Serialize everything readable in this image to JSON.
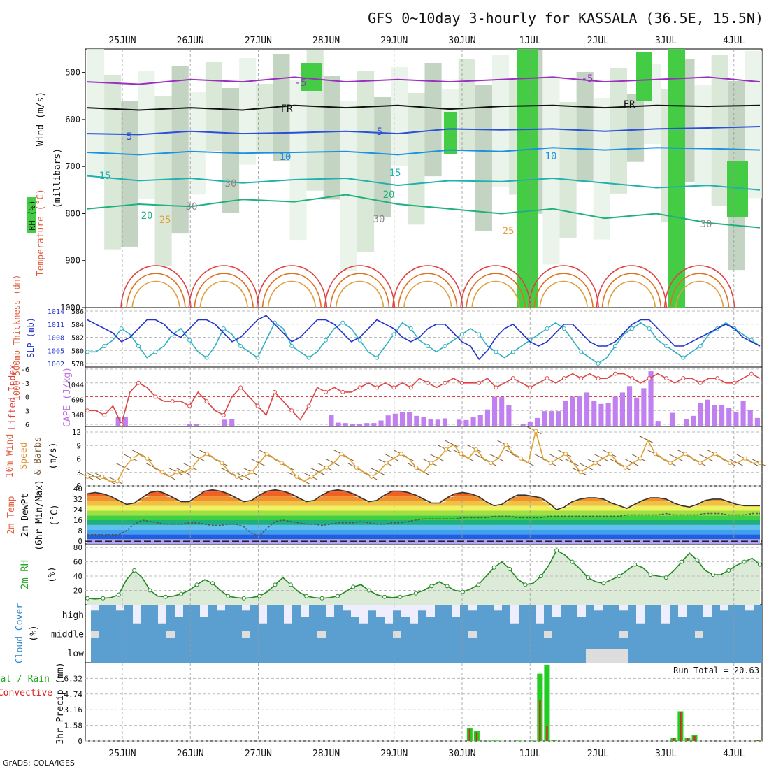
{
  "title": "GFS 0~10day 3-hourly for KASSALA (36.5E, 15.5N)",
  "credit": "GrADS: COLA/IGES",
  "dates": [
    "25JUN",
    "26JUN",
    "27JUN",
    "28JUN",
    "29JUN",
    "30JUN",
    "1JUL",
    "2JUL",
    "3JUL",
    "4JUL"
  ],
  "colors": {
    "grid": "#9a9a9a",
    "wind_blue": "#5a9fd0",
    "rain": "#22cc22",
    "conv": "#dd2222",
    "cape": "#c080f0",
    "rh_green": "#22cc22"
  },
  "chart_data": [
    {
      "type": "heatmap",
      "name": "pressure-time cross section",
      "ylabels": [
        "500",
        "600",
        "700",
        "800",
        "900",
        "1000"
      ],
      "ylabel_wind": "Wind (m/s)",
      "ylabel_temp": "Temperature (°C)",
      "ylabel_rh": "RH (%)",
      "ylabel_units": "(millibars)",
      "isotherm_labels": [
        "-5",
        "-5",
        "FR",
        "FR",
        "5",
        "5",
        "10",
        "10",
        "15",
        "15",
        "20",
        "20",
        "25",
        "25",
        "30",
        "30",
        "30",
        "30"
      ],
      "ylim": [
        450,
        1000
      ],
      "isotherms": [
        {
          "label": "-5",
          "p": [
            520,
            525,
            515,
            520,
            510,
            520,
            515,
            520,
            515,
            510,
            520,
            515,
            510,
            520
          ],
          "color": "#9a2fc0"
        },
        {
          "label": "FR",
          "p": [
            575,
            580,
            575,
            580,
            570,
            575,
            570,
            578,
            572,
            570,
            575,
            570,
            572,
            570
          ],
          "color": "#111111"
        },
        {
          "label": "5",
          "p": [
            630,
            632,
            625,
            630,
            628,
            625,
            630,
            620,
            622,
            620,
            625,
            620,
            618,
            615
          ],
          "color": "#2a4fd8"
        },
        {
          "label": "10",
          "p": [
            670,
            675,
            668,
            672,
            670,
            668,
            675,
            665,
            668,
            660,
            665,
            660,
            662,
            665
          ],
          "color": "#1e90e0"
        },
        {
          "label": "15",
          "p": [
            720,
            730,
            725,
            735,
            728,
            725,
            740,
            730,
            732,
            725,
            735,
            745,
            740,
            750
          ],
          "color": "#20b0b0"
        },
        {
          "label": "20",
          "p": [
            790,
            780,
            785,
            770,
            775,
            760,
            780,
            790,
            800,
            790,
            810,
            800,
            820,
            830
          ],
          "color": "#20b080"
        }
      ]
    },
    {
      "type": "line",
      "name": "thickness and slp",
      "ylabel_left": "1000-500mb Thickness (dm)",
      "ylabel_right": "SLP (mb)",
      "yticks_left": [
        "586",
        "584",
        "582",
        "580",
        "578"
      ],
      "yticks_right": [
        "1014",
        "1011",
        "1008",
        "1005",
        "1002"
      ],
      "thickness": [
        579,
        579,
        580,
        581,
        583,
        582,
        580,
        578,
        579,
        580,
        582,
        583,
        581,
        579,
        578,
        580,
        583,
        582,
        580,
        579,
        578,
        581,
        584,
        583,
        580,
        579,
        578,
        579,
        581,
        583,
        584,
        583,
        581,
        579,
        578,
        580,
        582,
        584,
        583,
        581,
        580,
        579,
        580,
        581,
        582,
        583,
        582,
        580,
        579,
        578,
        579,
        580,
        581,
        582,
        583,
        584,
        583,
        581,
        579,
        578,
        577,
        578,
        580,
        582,
        583,
        584,
        583,
        581,
        580,
        579,
        578,
        579,
        580,
        582,
        583,
        584,
        583,
        582,
        581,
        580
      ],
      "slp": [
        1012,
        1011,
        1010,
        1009,
        1007,
        1008,
        1010,
        1012,
        1012,
        1011,
        1009,
        1008,
        1010,
        1012,
        1012,
        1011,
        1009,
        1007,
        1008,
        1010,
        1012,
        1013,
        1011,
        1009,
        1007,
        1008,
        1010,
        1012,
        1012,
        1011,
        1009,
        1007,
        1008,
        1010,
        1012,
        1011,
        1010,
        1008,
        1007,
        1008,
        1010,
        1011,
        1011,
        1009,
        1007,
        1006,
        1003,
        1005,
        1008,
        1010,
        1011,
        1009,
        1007,
        1006,
        1007,
        1009,
        1011,
        1011,
        1009,
        1007,
        1006,
        1006,
        1007,
        1009,
        1011,
        1012,
        1012,
        1010,
        1008,
        1006,
        1006,
        1007,
        1008,
        1009,
        1010,
        1011,
        1010,
        1008,
        1007,
        1006
      ]
    },
    {
      "type": "bar",
      "name": "lifted index and cape",
      "ylabel_left": "Lifted Index",
      "ylabel_right": "CAPE (J/kg)",
      "yticks_left": [
        "-6",
        "-3",
        "0",
        "3",
        "6"
      ],
      "yticks_right": [
        "1044",
        "696",
        "348"
      ],
      "lifted_index": [
        3,
        3,
        4,
        2,
        6,
        -1,
        -3,
        -2,
        0,
        1,
        1,
        1,
        2,
        -1,
        1,
        3,
        4,
        0,
        -2,
        0,
        2,
        4,
        -1,
        1,
        3,
        5,
        2,
        -2,
        -1,
        -2,
        -1,
        -1,
        -2,
        -3,
        -2,
        -3,
        -2,
        -3,
        -2,
        -4,
        -3,
        -2,
        -3,
        -4,
        -3,
        -3,
        -3,
        -4,
        -2,
        -3,
        -4,
        -3,
        -2,
        -3,
        -4,
        -3,
        -4,
        -5,
        -4,
        -5,
        -4,
        -4,
        -5,
        -5,
        -4,
        -3,
        -4,
        -5,
        -4,
        -3,
        -4,
        -4,
        -3,
        -4,
        -4,
        -3,
        -3,
        -4,
        -5,
        -4
      ],
      "cape": [
        0,
        0,
        0,
        0,
        220,
        230,
        0,
        0,
        0,
        0,
        0,
        0,
        0,
        0,
        60,
        60,
        0,
        0,
        0,
        160,
        170,
        0,
        0,
        0,
        0,
        0,
        0,
        0,
        0,
        0,
        0,
        0,
        0,
        0,
        270,
        90,
        80,
        60,
        60,
        80,
        80,
        140,
        260,
        300,
        330,
        330,
        250,
        230,
        180,
        160,
        190,
        0,
        160,
        150,
        230,
        270,
        400,
        700,
        690,
        500,
        0,
        60,
        100,
        200,
        360,
        360,
        360,
        600,
        700,
        720,
        800,
        600,
        530,
        560,
        700,
        800,
        950,
        680,
        900,
        1300,
        130,
        0,
        320,
        0,
        180,
        250,
        550,
        630,
        500,
        500,
        430,
        330,
        600,
        380,
        200
      ]
    },
    {
      "type": "line",
      "name": "10m wind",
      "ylabel": "10m Wind Speed & Barbs (m/s)",
      "yticks": [
        "12",
        "9",
        "6",
        "3",
        "0"
      ],
      "ylim": [
        0,
        13
      ],
      "values": [
        2,
        2,
        2,
        1,
        1,
        4,
        6,
        7,
        6,
        4,
        3,
        2,
        3,
        3,
        4,
        6,
        7,
        6,
        5,
        3,
        2,
        2,
        3,
        5,
        7,
        6,
        5,
        4,
        2,
        1,
        2,
        3,
        4,
        5,
        7,
        6,
        4,
        3,
        2,
        3,
        5,
        6,
        7,
        6,
        4,
        3,
        5,
        6,
        8,
        9,
        7,
        6,
        8,
        6,
        5,
        6,
        9,
        7,
        6,
        5,
        12,
        6,
        5,
        6,
        7,
        5,
        3,
        4,
        5,
        6,
        7,
        5,
        4,
        5,
        6,
        10,
        7,
        6,
        5,
        6,
        7,
        6,
        5,
        6,
        7,
        6,
        5,
        5,
        6,
        5,
        5
      ]
    },
    {
      "type": "area",
      "name": "2m temperature and dewpoint",
      "ylabel": "2m Temp 2m DewPt (6hr Min/Max) (°C)",
      "yticks": [
        "40",
        "32",
        "24",
        "16",
        "8",
        "0"
      ],
      "ylim": [
        -2,
        42
      ],
      "temp": [
        36,
        37,
        36,
        34,
        31,
        28,
        29,
        33,
        37,
        38,
        36,
        33,
        30,
        30,
        34,
        38,
        39,
        38,
        36,
        33,
        30,
        31,
        35,
        38,
        39,
        38,
        36,
        33,
        30,
        31,
        35,
        38,
        39,
        38,
        36,
        33,
        30,
        31,
        35,
        38,
        38,
        37,
        35,
        32,
        29,
        29,
        33,
        36,
        37,
        36,
        34,
        30,
        27,
        28,
        32,
        35,
        35,
        34,
        33,
        29,
        24,
        26,
        30,
        32,
        33,
        33,
        32,
        29,
        27,
        25,
        28,
        31,
        33,
        33,
        32,
        29,
        27,
        26,
        28,
        31,
        32,
        32,
        30,
        28,
        27,
        27,
        27
      ],
      "dewpoint": [
        5,
        5,
        5,
        5,
        5,
        8,
        13,
        16,
        15,
        14,
        13,
        13,
        13,
        14,
        14,
        13,
        12,
        12,
        13,
        13,
        11,
        6,
        4,
        10,
        15,
        16,
        15,
        14,
        13,
        13,
        12,
        13,
        14,
        14,
        14,
        15,
        14,
        13,
        13,
        14,
        14,
        15,
        16,
        17,
        17,
        17,
        17,
        17,
        18,
        18,
        18,
        18,
        19,
        19,
        19,
        18,
        18,
        18,
        18,
        19,
        19,
        19,
        19,
        19,
        19,
        19,
        19,
        19,
        19,
        20,
        20,
        20,
        20,
        20,
        21,
        20,
        20,
        20,
        20,
        21,
        21,
        21,
        20,
        20,
        20,
        21,
        21
      ]
    },
    {
      "type": "area",
      "name": "2m rh",
      "ylabel": "2m RH (%)",
      "yticks": [
        "80",
        "60",
        "40",
        "20"
      ],
      "ylim": [
        0,
        85
      ],
      "values": [
        9,
        8,
        9,
        10,
        14,
        35,
        48,
        38,
        20,
        12,
        11,
        12,
        15,
        20,
        28,
        35,
        30,
        20,
        12,
        10,
        9,
        10,
        12,
        18,
        28,
        38,
        28,
        18,
        12,
        10,
        9,
        10,
        12,
        18,
        25,
        28,
        20,
        14,
        11,
        10,
        11,
        13,
        16,
        20,
        26,
        32,
        26,
        20,
        18,
        22,
        28,
        40,
        52,
        60,
        50,
        36,
        28,
        30,
        40,
        55,
        76,
        70,
        60,
        50,
        38,
        32,
        30,
        35,
        40,
        48,
        56,
        52,
        42,
        40,
        38,
        48,
        60,
        72,
        62,
        48,
        42,
        42,
        48,
        55,
        60,
        65,
        56
      ]
    },
    {
      "type": "heatmap",
      "name": "cloud cover",
      "ylabel": "Cloud Cover (%)",
      "levels": [
        "high",
        "middle",
        "low"
      ]
    },
    {
      "type": "bar",
      "name": "3hr precip",
      "ylabel_total": "Total / Rain",
      "ylabel_conv": "Convective",
      "ylabel": "3hr Precip (mm)",
      "yticks": [
        "6.32",
        "4.74",
        "3.16",
        "1.58",
        "0"
      ],
      "ylim": [
        0,
        7.9
      ],
      "run_total_label": "Run Total = 20.63",
      "total": [
        0,
        0,
        0,
        0,
        0,
        0,
        0,
        0,
        0,
        0,
        0,
        0,
        0,
        0,
        0,
        0,
        0,
        0,
        0,
        0,
        0,
        0,
        0,
        0,
        0,
        0,
        0,
        0,
        0,
        0,
        0,
        0,
        0,
        0,
        0,
        0,
        0,
        0,
        0,
        0,
        0,
        0,
        0,
        0,
        0,
        0,
        0,
        0,
        0,
        0,
        0,
        0,
        0,
        0,
        1.3,
        1.0,
        0,
        0.05,
        0.05,
        0,
        0,
        0.05,
        0,
        0.05,
        6.8,
        7.7,
        0.1,
        0,
        0,
        0,
        0,
        0,
        0,
        0,
        0,
        0,
        0,
        0,
        0,
        0,
        0,
        0,
        0,
        0.3,
        3.0,
        0.3,
        0.6,
        0,
        0,
        0,
        0,
        0,
        0,
        0,
        0,
        0.1
      ],
      "convective": [
        0,
        0,
        0,
        0,
        0,
        0,
        0,
        0,
        0,
        0,
        0,
        0,
        0,
        0,
        0,
        0,
        0,
        0,
        0,
        0,
        0,
        0,
        0,
        0,
        0,
        0,
        0,
        0,
        0,
        0,
        0,
        0,
        0,
        0,
        0,
        0,
        0,
        0,
        0,
        0,
        0,
        0,
        0,
        0,
        0,
        0,
        0,
        0,
        0,
        0,
        0,
        0,
        0,
        0,
        1.2,
        0.9,
        0,
        0,
        0,
        0,
        0,
        0,
        0,
        0,
        4.1,
        1.5,
        0.05,
        0,
        0,
        0,
        0,
        0,
        0,
        0,
        0,
        0,
        0,
        0,
        0,
        0,
        0,
        0,
        0,
        0.3,
        2.9,
        0.3,
        0.5,
        0,
        0,
        0,
        0,
        0,
        0,
        0,
        0,
        0.1
      ]
    }
  ]
}
